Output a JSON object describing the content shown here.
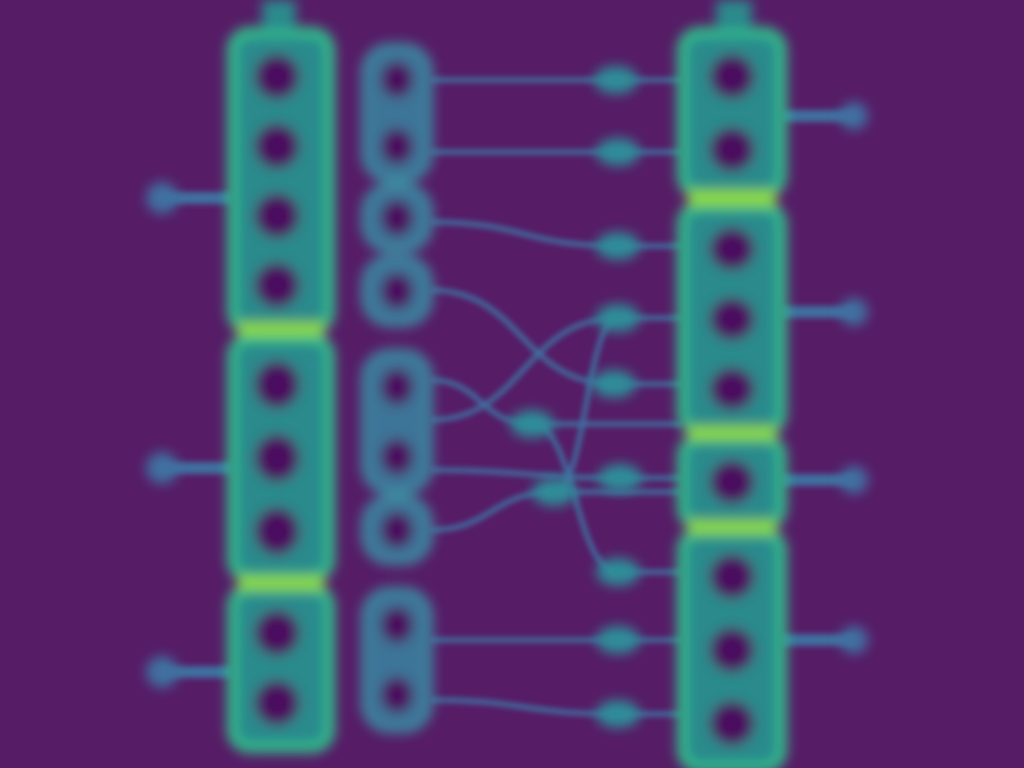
{
  "colors": {
    "background": "#561c66",
    "edge": "#3f6fa0",
    "node_fill": "#2a8a8c",
    "node_rim": "#31c08a",
    "highlight": "#8cd83c",
    "hole": "#4b0b5e"
  },
  "diagram": {
    "left_stack": {
      "groups": [
        {
          "cells": 4
        },
        {
          "cells": 3
        },
        {
          "cells": 2
        }
      ],
      "ports": 3
    },
    "middle_column": {
      "groups": [
        {
          "cells": 2
        },
        {
          "cells": 1
        },
        {
          "cells": 1
        },
        {
          "cells": 2
        },
        {
          "cells": 1
        },
        {
          "cells": 2
        }
      ]
    },
    "junctions": 10,
    "right_stack": {
      "groups": [
        {
          "cells": 2
        },
        {
          "cells": 3
        },
        {
          "cells": 1
        },
        {
          "cells": 3
        }
      ],
      "ports": 4
    }
  }
}
